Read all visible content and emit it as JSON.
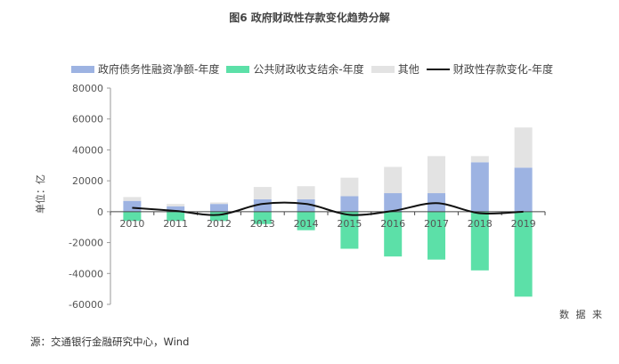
{
  "title": "图6 政府财政性存款变化趋势分解",
  "unit_label": "单位：亿",
  "source_corner": "数 据 来",
  "source": "源：交通银行金融研究中心，Wind",
  "colors": {
    "debt": "#9db3e2",
    "fiscal": "#5ce0a8",
    "other": "#e3e3e3",
    "line": "#111111"
  },
  "legend": [
    {
      "label": "政府债务性融资净额-年度",
      "kind": "box",
      "color": "#9db3e2"
    },
    {
      "label": "公共财政收支结余-年度",
      "kind": "box",
      "color": "#5ce0a8"
    },
    {
      "label": "其他",
      "kind": "box",
      "color": "#e3e3e3"
    },
    {
      "label": "财政性存款变化-年度",
      "kind": "line",
      "color": "#111111"
    }
  ],
  "chart_data": {
    "type": "bar",
    "stacked": true,
    "categories": [
      "2010",
      "2011",
      "2012",
      "2013",
      "2014",
      "2015",
      "2016",
      "2017",
      "2018",
      "2019"
    ],
    "series": [
      {
        "name": "政府债务性融资净额-年度",
        "type": "bar",
        "color": "#9db3e2",
        "values": [
          7000,
          3500,
          5000,
          8000,
          8000,
          10000,
          12000,
          12000,
          32000,
          28500
        ]
      },
      {
        "name": "公共财政收支结余-年度",
        "type": "bar",
        "color": "#5ce0a8",
        "values": [
          -6000,
          -6000,
          -6000,
          -8000,
          -12000,
          -24000,
          -29000,
          -31000,
          -38000,
          -55000
        ]
      },
      {
        "name": "其他",
        "type": "bar",
        "color": "#e3e3e3",
        "values": [
          2500,
          1500,
          1000,
          8000,
          8500,
          12000,
          17000,
          24000,
          4000,
          26000
        ]
      },
      {
        "name": "财政性存款变化-年度",
        "type": "line",
        "color": "#111111",
        "values": [
          2500,
          500,
          -2000,
          5000,
          5000,
          -2000,
          500,
          5500,
          -1000,
          0
        ]
      }
    ],
    "yticks": [
      80000,
      60000,
      40000,
      20000,
      0,
      -20000,
      -40000,
      -60000
    ],
    "ylim": [
      -60000,
      80000
    ],
    "xlabel": "",
    "ylabel": "单位：亿",
    "grid": false,
    "legend_position": "top"
  }
}
